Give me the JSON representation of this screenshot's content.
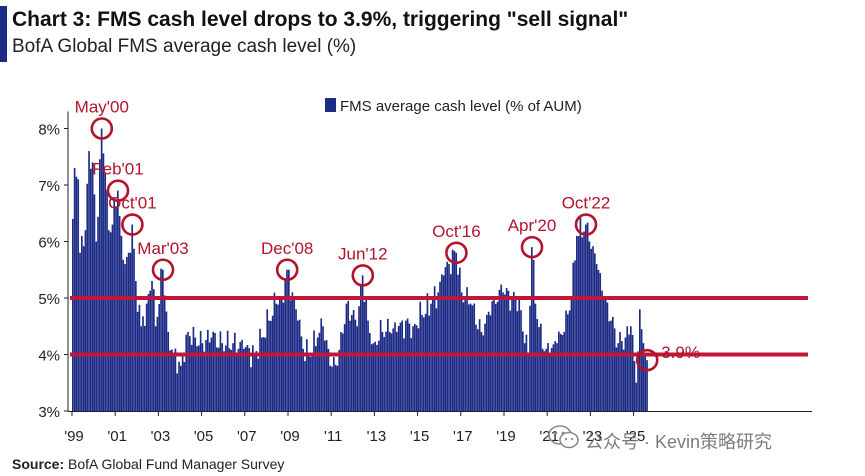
{
  "title": "Chart 3: FMS cash level drops to 3.9%, triggering \"sell signal\"",
  "subtitle": "BofA Global FMS average cash level (%)",
  "source_label": "Source:",
  "source_text": " BofA Global Fund Manager Survey",
  "watermark": "公众号 · Kevin策略研究",
  "colors": {
    "bar": "#1c2b85",
    "threshold": "#c0163a",
    "annotation": "#b3132b",
    "accent": "#1c2b85"
  },
  "chart_data": {
    "type": "bar",
    "title": "Chart 3: FMS cash level drops to 3.9%, triggering \"sell signal\"",
    "subtitle": "BofA Global FMS average cash level (%)",
    "xlabel": "",
    "ylabel": "",
    "ylim": [
      3,
      8.5
    ],
    "ytick_values": [
      3,
      4,
      5,
      6,
      7,
      8
    ],
    "ytick_labels": [
      "3%",
      "4%",
      "5%",
      "6%",
      "7%",
      "8%"
    ],
    "xtick_labels": [
      "'99",
      "'01",
      "'03",
      "'05",
      "'07",
      "'09",
      "'11",
      "'13",
      "'15",
      "'17",
      "'19",
      "'21",
      "'23",
      "'25"
    ],
    "xtick_years": [
      1999,
      2001,
      2003,
      2005,
      2007,
      2009,
      2011,
      2013,
      2015,
      2017,
      2019,
      2021,
      2023,
      2025
    ],
    "x_start": "1999-01",
    "legend": "FMS average cash level (% of AUM)",
    "legend_position": "top-center",
    "grid": false,
    "series": [
      {
        "name": "FMS average cash level (% of AUM)",
        "anchors": [
          [
            "1999-01",
            6.4
          ],
          [
            "1999-02",
            7.3
          ],
          [
            "1999-04",
            7.1
          ],
          [
            "1999-05",
            5.8
          ],
          [
            "1999-08",
            6.2
          ],
          [
            "1999-10",
            7.6
          ],
          [
            "1999-12",
            7.4
          ],
          [
            "2000-02",
            6.0
          ],
          [
            "2000-05",
            8.0
          ],
          [
            "2000-07",
            7.2
          ],
          [
            "2000-09",
            6.2
          ],
          [
            "2000-11",
            6.3
          ],
          [
            "2001-02",
            6.9
          ],
          [
            "2001-04",
            6.1
          ],
          [
            "2001-06",
            5.6
          ],
          [
            "2001-08",
            5.8
          ],
          [
            "2001-10",
            6.3
          ],
          [
            "2001-12",
            5.3
          ],
          [
            "2002-03",
            4.5
          ],
          [
            "2002-06",
            4.9
          ],
          [
            "2002-09",
            5.3
          ],
          [
            "2002-11",
            4.5
          ],
          [
            "2003-03",
            5.5
          ],
          [
            "2003-06",
            4.4
          ],
          [
            "2003-09",
            4.0
          ],
          [
            "2004-01",
            3.8
          ],
          [
            "2004-05",
            4.4
          ],
          [
            "2004-09",
            4.3
          ],
          [
            "2005-01",
            4.2
          ],
          [
            "2005-06",
            4.3
          ],
          [
            "2005-12",
            4.2
          ],
          [
            "2006-06",
            4.2
          ],
          [
            "2006-12",
            4.1
          ],
          [
            "2007-06",
            4.0
          ],
          [
            "2007-10",
            4.3
          ],
          [
            "2008-02",
            4.6
          ],
          [
            "2008-06",
            4.9
          ],
          [
            "2008-09",
            5.0
          ],
          [
            "2008-12",
            5.5
          ],
          [
            "2009-03",
            5.1
          ],
          [
            "2009-06",
            4.6
          ],
          [
            "2009-09",
            4.1
          ],
          [
            "2009-12",
            4.0
          ],
          [
            "2010-05",
            4.3
          ],
          [
            "2010-08",
            4.5
          ],
          [
            "2010-12",
            3.8
          ],
          [
            "2011-04",
            3.8
          ],
          [
            "2011-09",
            4.9
          ],
          [
            "2011-12",
            4.7
          ],
          [
            "2012-03",
            4.5
          ],
          [
            "2012-06",
            5.4
          ],
          [
            "2012-09",
            4.6
          ],
          [
            "2012-12",
            4.2
          ],
          [
            "2013-05",
            4.4
          ],
          [
            "2013-09",
            4.4
          ],
          [
            "2014-01",
            4.4
          ],
          [
            "2014-06",
            4.6
          ],
          [
            "2014-10",
            4.5
          ],
          [
            "2015-03",
            4.7
          ],
          [
            "2015-08",
            4.9
          ],
          [
            "2015-12",
            5.1
          ],
          [
            "2016-03",
            5.4
          ],
          [
            "2016-06",
            5.6
          ],
          [
            "2016-10",
            5.8
          ],
          [
            "2017-01",
            5.1
          ],
          [
            "2017-06",
            4.9
          ],
          [
            "2017-12",
            4.4
          ],
          [
            "2018-03",
            4.7
          ],
          [
            "2018-07",
            5.0
          ],
          [
            "2018-12",
            5.1
          ],
          [
            "2019-05",
            5.0
          ],
          [
            "2019-09",
            5.0
          ],
          [
            "2019-12",
            4.2
          ],
          [
            "2020-02",
            4.0
          ],
          [
            "2020-04",
            5.9
          ],
          [
            "2020-06",
            4.9
          ],
          [
            "2020-10",
            4.1
          ],
          [
            "2021-02",
            4.0
          ],
          [
            "2021-06",
            4.2
          ],
          [
            "2021-10",
            4.4
          ],
          [
            "2022-02",
            5.0
          ],
          [
            "2022-05",
            6.1
          ],
          [
            "2022-10",
            6.3
          ],
          [
            "2022-12",
            6.0
          ],
          [
            "2023-04",
            5.6
          ],
          [
            "2023-08",
            5.0
          ],
          [
            "2023-12",
            4.6
          ],
          [
            "2024-04",
            4.2
          ],
          [
            "2024-08",
            4.3
          ],
          [
            "2024-11",
            4.5
          ],
          [
            "2025-02",
            3.5
          ],
          [
            "2025-04",
            4.8
          ],
          [
            "2025-06",
            4.2
          ],
          [
            "2025-08",
            3.9
          ]
        ]
      }
    ],
    "threshold_lines": [
      5,
      4
    ],
    "annotations": [
      {
        "label": "May'00",
        "date": "2000-05",
        "value": 8.0,
        "label_side": "above"
      },
      {
        "label": "Feb'01",
        "date": "2001-02",
        "value": 6.9,
        "label_side": "above"
      },
      {
        "label": "Oct'01",
        "date": "2001-10",
        "value": 6.3,
        "label_side": "above"
      },
      {
        "label": "Mar'03",
        "date": "2003-03",
        "value": 5.5,
        "label_side": "above"
      },
      {
        "label": "Dec'08",
        "date": "2008-12",
        "value": 5.5,
        "label_side": "above"
      },
      {
        "label": "Jun'12",
        "date": "2012-06",
        "value": 5.4,
        "label_side": "above"
      },
      {
        "label": "Oct'16",
        "date": "2016-10",
        "value": 5.8,
        "label_side": "above"
      },
      {
        "label": "Apr'20",
        "date": "2020-04",
        "value": 5.9,
        "label_side": "above"
      },
      {
        "label": "Oct'22",
        "date": "2022-10",
        "value": 6.3,
        "label_side": "above"
      },
      {
        "label": "3.9%",
        "date": "2025-08",
        "value": 3.9,
        "label_side": "right"
      }
    ]
  }
}
